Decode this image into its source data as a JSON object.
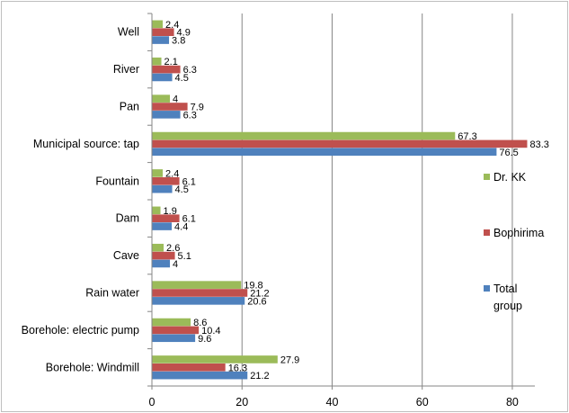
{
  "chart_data": {
    "type": "bar",
    "orientation": "horizontal",
    "title": "",
    "xlabel": "",
    "ylabel": "",
    "xlim": [
      0,
      85
    ],
    "xticks": [
      0,
      20,
      40,
      60,
      80
    ],
    "grid": "vertical",
    "legend_position": "right",
    "categories": [
      "Well",
      "River",
      "Pan",
      "Municipal source: tap",
      "Fountain",
      "Dam",
      "Cave",
      "Rain water",
      "Borehole: electric pump",
      "Borehole: Windmill"
    ],
    "series": [
      {
        "name": "Dr. KK",
        "color": "#9BBB59",
        "values": [
          2.4,
          2.1,
          4,
          67.3,
          2.4,
          1.9,
          2.6,
          19.8,
          8.6,
          27.9
        ]
      },
      {
        "name": "Bophirima",
        "color": "#C0504D",
        "values": [
          4.9,
          6.3,
          7.9,
          83.3,
          6.1,
          6.1,
          5.1,
          21.2,
          10.4,
          16.3
        ]
      },
      {
        "name": "Total group",
        "color": "#4F81BD",
        "values": [
          3.8,
          4.5,
          6.3,
          76.5,
          4.5,
          4.4,
          4,
          20.6,
          9.6,
          21.2
        ]
      }
    ],
    "legend": [
      {
        "series": 0,
        "lines": [
          "Dr. KK"
        ]
      },
      {
        "series": 1,
        "lines": [
          "Bophirima"
        ]
      },
      {
        "series": 2,
        "lines": [
          "Total",
          "group"
        ]
      }
    ]
  }
}
